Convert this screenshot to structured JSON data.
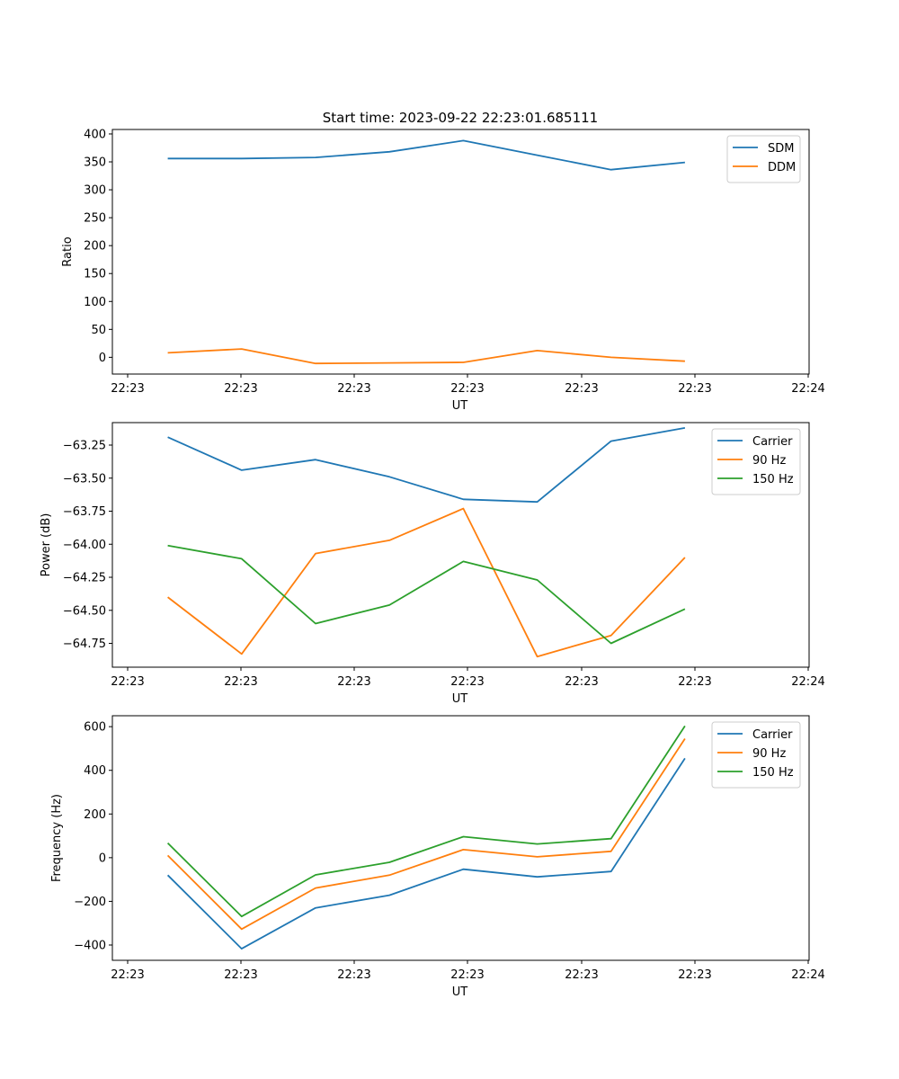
{
  "title": "Start time: 2023-09-22 22:23:01.685111",
  "colors": {
    "c0": "#1f77b4",
    "c1": "#ff7f0e",
    "c2": "#2ca02c",
    "axis": "#000000"
  },
  "chart_data": [
    {
      "type": "line",
      "title": "Start time: 2023-09-22 22:23:01.685111",
      "xlabel": "UT",
      "ylabel": "Ratio",
      "x_tick_labels": [
        "22:23",
        "22:23",
        "22:23",
        "22:23",
        "22:23",
        "22:23",
        "22:24"
      ],
      "x_point_index": [
        0,
        1,
        2,
        3,
        4,
        5,
        6,
        7
      ],
      "xlim": [
        -0.75,
        8.68
      ],
      "ylim": [
        -30,
        408
      ],
      "y_ticks": [
        0,
        50,
        100,
        150,
        200,
        250,
        300,
        350,
        400
      ],
      "y_tick_labels": [
        "0",
        "50",
        "100",
        "150",
        "200",
        "250",
        "300",
        "350",
        "400"
      ],
      "legend_position": "top-right",
      "series": [
        {
          "name": "SDM",
          "color": "#1f77b4",
          "values": [
            356,
            356,
            358,
            368,
            388,
            362,
            336,
            349
          ]
        },
        {
          "name": "DDM",
          "color": "#ff7f0e",
          "values": [
            8,
            15,
            -11,
            -10,
            -9,
            12,
            0,
            -7
          ]
        }
      ]
    },
    {
      "type": "line",
      "title": "",
      "xlabel": "UT",
      "ylabel": "Power (dB)",
      "x_tick_labels": [
        "22:23",
        "22:23",
        "22:23",
        "22:23",
        "22:23",
        "22:23",
        "22:24"
      ],
      "x_point_index": [
        0,
        1,
        2,
        3,
        4,
        5,
        6,
        7
      ],
      "xlim": [
        -0.75,
        8.68
      ],
      "ylim": [
        -64.93,
        -63.08
      ],
      "y_ticks": [
        -64.75,
        -64.5,
        -64.25,
        -64.0,
        -63.75,
        -63.5,
        -63.25
      ],
      "y_tick_labels": [
        "−64.75",
        "−64.50",
        "−64.25",
        "−64.00",
        "−63.75",
        "−63.50",
        "−63.25"
      ],
      "legend_position": "top-right",
      "series": [
        {
          "name": "Carrier",
          "color": "#1f77b4",
          "values": [
            -63.19,
            -63.44,
            -63.36,
            -63.49,
            -63.66,
            -63.68,
            -63.22,
            -63.12
          ]
        },
        {
          "name": "90 Hz",
          "color": "#ff7f0e",
          "values": [
            -64.4,
            -64.83,
            -64.07,
            -63.97,
            -63.73,
            -64.85,
            -64.69,
            -64.1
          ]
        },
        {
          "name": "150 Hz",
          "color": "#2ca02c",
          "values": [
            -64.01,
            -64.11,
            -64.6,
            -64.46,
            -64.13,
            -64.27,
            -64.75,
            -64.49
          ]
        }
      ]
    },
    {
      "type": "line",
      "title": "",
      "xlabel": "UT",
      "ylabel": "Frequency (Hz)",
      "x_tick_labels": [
        "22:23",
        "22:23",
        "22:23",
        "22:23",
        "22:23",
        "22:23",
        "22:24"
      ],
      "x_point_index": [
        0,
        1,
        2,
        3,
        4,
        5,
        6,
        7
      ],
      "xlim": [
        -0.75,
        8.68
      ],
      "ylim": [
        -470,
        650
      ],
      "y_ticks": [
        -400,
        -200,
        0,
        200,
        400,
        600
      ],
      "y_tick_labels": [
        "−400",
        "−200",
        "0",
        "200",
        "400",
        "600"
      ],
      "legend_position": "top-right",
      "series": [
        {
          "name": "Carrier",
          "color": "#1f77b4",
          "values": [
            -80,
            -417,
            -230,
            -172,
            -53,
            -88,
            -63,
            455
          ]
        },
        {
          "name": "90 Hz",
          "color": "#ff7f0e",
          "values": [
            10,
            -327,
            -139,
            -80,
            37,
            4,
            29,
            545
          ]
        },
        {
          "name": "150 Hz",
          "color": "#2ca02c",
          "values": [
            67,
            -269,
            -79,
            -21,
            96,
            63,
            87,
            603
          ]
        }
      ]
    }
  ]
}
